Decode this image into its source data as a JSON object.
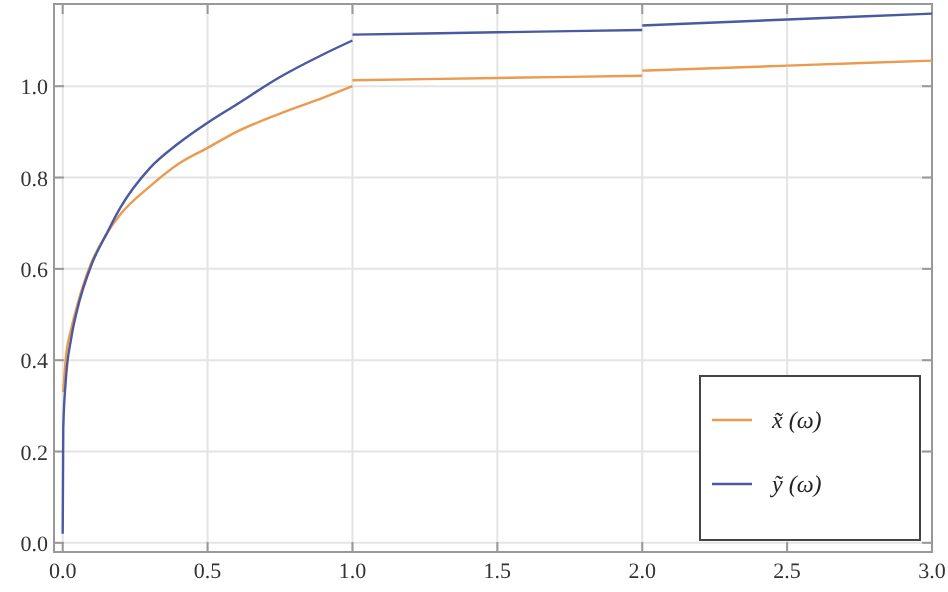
{
  "chart_data": {
    "type": "line",
    "xlim": [
      -0.03,
      3.0
    ],
    "ylim": [
      -0.02,
      1.18
    ],
    "xticks": [
      {
        "value": 0,
        "label": "0.0"
      },
      {
        "value": 0.5,
        "label": "0.5"
      },
      {
        "value": 1,
        "label": "1.0"
      },
      {
        "value": 1.5,
        "label": "1.5"
      },
      {
        "value": 2,
        "label": "2.0"
      },
      {
        "value": 2.5,
        "label": "2.5"
      },
      {
        "value": 3,
        "label": "3.0"
      }
    ],
    "yticks": [
      {
        "value": 0,
        "label": "0.0"
      },
      {
        "value": 0.2,
        "label": "0.2"
      },
      {
        "value": 0.4,
        "label": "0.4"
      },
      {
        "value": 0.6,
        "label": "0.6"
      },
      {
        "value": 0.8,
        "label": "0.8"
      },
      {
        "value": 1,
        "label": "1.0"
      }
    ],
    "grid": true,
    "legend": "bottom right",
    "line_style": "solid",
    "marker": "none",
    "series": [
      {
        "name": "x̃ (ω)",
        "color": "#eb9a4f",
        "x": [
          0.002,
          0.01,
          0.03,
          0.05,
          0.1,
          0.15,
          0.2,
          0.3,
          0.4,
          0.5,
          0.6,
          0.75,
          0.9,
          1.0,
          null,
          1.0,
          1.5,
          2.0,
          null,
          2.0,
          2.5,
          3.0
        ],
        "values": [
          0.33,
          0.4,
          0.47,
          0.52,
          0.615,
          0.675,
          0.72,
          0.78,
          0.83,
          0.865,
          0.9,
          0.94,
          0.975,
          1.0,
          null,
          1.013,
          1.018,
          1.023,
          null,
          1.034,
          1.045,
          1.056
        ]
      },
      {
        "name": "ỹ (ω)",
        "color": "#4a5aa0",
        "x": [
          0,
          0.002,
          0.01,
          0.03,
          0.05,
          0.1,
          0.15,
          0.2,
          0.3,
          0.4,
          0.5,
          0.6,
          0.75,
          0.9,
          1.0,
          null,
          1.0,
          1.5,
          2.0,
          null,
          2.0,
          2.5,
          3.0
        ],
        "values": [
          0.02,
          0.25,
          0.35,
          0.45,
          0.51,
          0.61,
          0.675,
          0.735,
          0.82,
          0.875,
          0.92,
          0.96,
          1.02,
          1.07,
          1.1,
          null,
          1.113,
          1.118,
          1.123,
          null,
          1.133,
          1.146,
          1.159
        ]
      }
    ]
  }
}
